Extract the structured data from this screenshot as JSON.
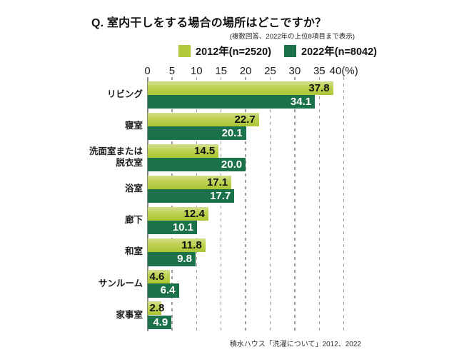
{
  "colors": {
    "series_2012": "#b2c93c",
    "series_2012_gradient_top": "#d4dd8f",
    "series_2012_gradient_mid": "#c0d257",
    "series_2012_gradient_bottom": "#a9c733",
    "series_2022": "#1b7149",
    "grid": "#9b9b9b",
    "axis": "#8c8c8c",
    "value_label_2012": "#111111",
    "value_label_2022": "#ffffff"
  },
  "chart_data": {
    "type": "bar",
    "orientation": "horizontal",
    "title": "Q. 室内干しをする場合の場所はどこですか？",
    "subtitle": "(複数回答、2022年の上位8項目まで表示)",
    "source": "積水ハウス「洗濯について」2012、2022",
    "categories": [
      "リビング",
      "寝室",
      "洗面室または\n脱衣室",
      "浴室",
      "廊下",
      "和室",
      "サンルーム",
      "家事室"
    ],
    "series": [
      {
        "name": "2012年(n=2520)",
        "color": "#b2c93c",
        "values": [
          37.8,
          22.7,
          14.5,
          17.1,
          12.4,
          11.8,
          4.6,
          2.8
        ]
      },
      {
        "name": "2022年(n=8042)",
        "color": "#1b7149",
        "values": [
          34.1,
          20.1,
          20.0,
          17.7,
          10.1,
          9.8,
          6.4,
          4.9
        ]
      }
    ],
    "x_ticks": [
      0,
      5,
      10,
      15,
      20,
      25,
      30,
      35,
      40
    ],
    "x_unit_suffix": "(%)",
    "xlim": [
      0,
      40
    ],
    "grid": "dashed-vertical",
    "legend_position": "top",
    "value_labels": "one-decimal"
  }
}
